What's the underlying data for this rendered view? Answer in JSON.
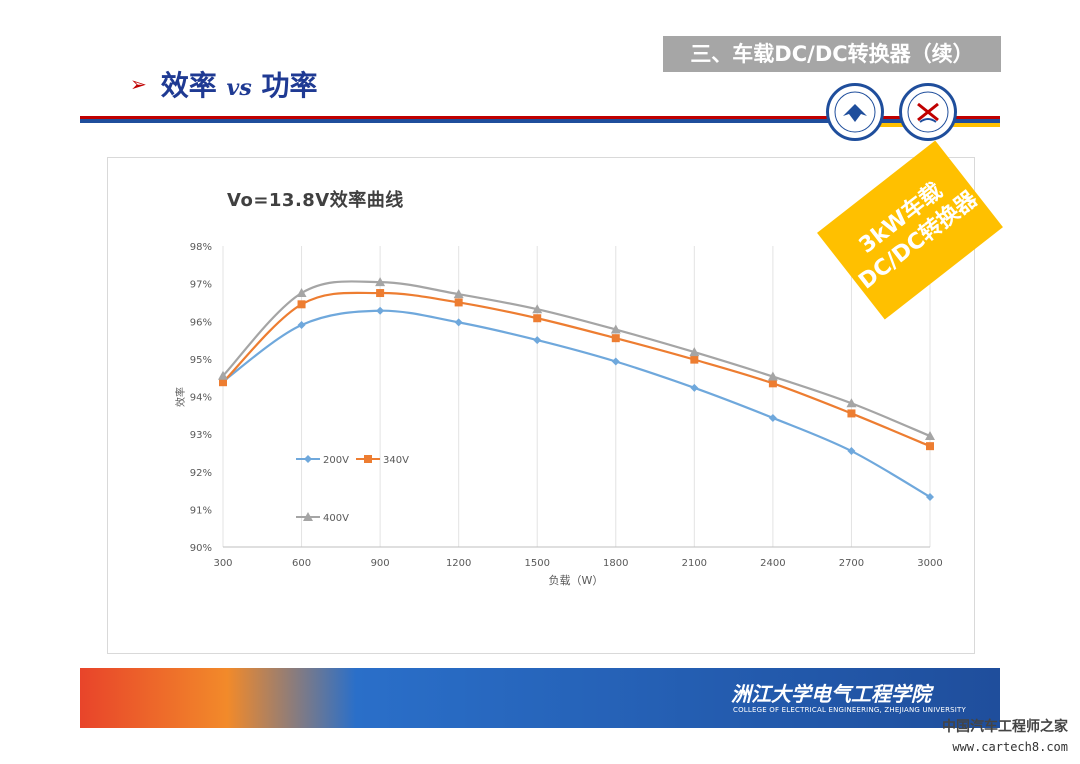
{
  "header": {
    "section_label": "三、车载DC/DC转换器（续）",
    "title_prefix": "效率",
    "title_vs": "vs",
    "title_suffix": "功率",
    "arrow": "➢"
  },
  "stamp": {
    "line1": "3kW车载",
    "line2": "DC/DC转换器",
    "color": "#ffc000"
  },
  "footer": {
    "university_cn": "洲江大学电气工程学院",
    "college_en": "COLLEGE OF ELECTRICAL ENGINEERING, ZHEJIANG UNIVERSITY"
  },
  "watermark": {
    "site_cn": "中国汽车工程师之家",
    "site_url": "www.cartech8.com"
  },
  "colors": {
    "title_blue": "#1f3a93",
    "series_200V": "#6fa8dc",
    "series_340V": "#ed7d31",
    "series_400V": "#a5a5a5"
  },
  "chart_data": {
    "type": "line",
    "title": "Vo=13.8V效率曲线",
    "xlabel": "负载（W）",
    "ylabel": "效率",
    "categories": [
      "300",
      "600",
      "900",
      "1200",
      "1500",
      "1800",
      "2100",
      "2400",
      "2700",
      "3000"
    ],
    "ylim": [
      90,
      98
    ],
    "yticks": [
      "90%",
      "91%",
      "92%",
      "93%",
      "94%",
      "95%",
      "96%",
      "97%",
      "98%"
    ],
    "grid": "vertical",
    "legend_position": "bottom-left",
    "series": [
      {
        "name": "200V",
        "marker": "diamond",
        "values": [
          94.4,
          95.9,
          96.28,
          95.97,
          95.5,
          94.93,
          94.23,
          93.43,
          92.55,
          91.33
        ]
      },
      {
        "name": "340V",
        "marker": "square",
        "values": [
          94.38,
          96.45,
          96.75,
          96.5,
          96.08,
          95.55,
          94.98,
          94.35,
          93.55,
          92.68
        ]
      },
      {
        "name": "400V",
        "marker": "triangle",
        "values": [
          94.55,
          96.75,
          97.04,
          96.72,
          96.32,
          95.78,
          95.18,
          94.53,
          93.82,
          92.95
        ]
      }
    ]
  }
}
